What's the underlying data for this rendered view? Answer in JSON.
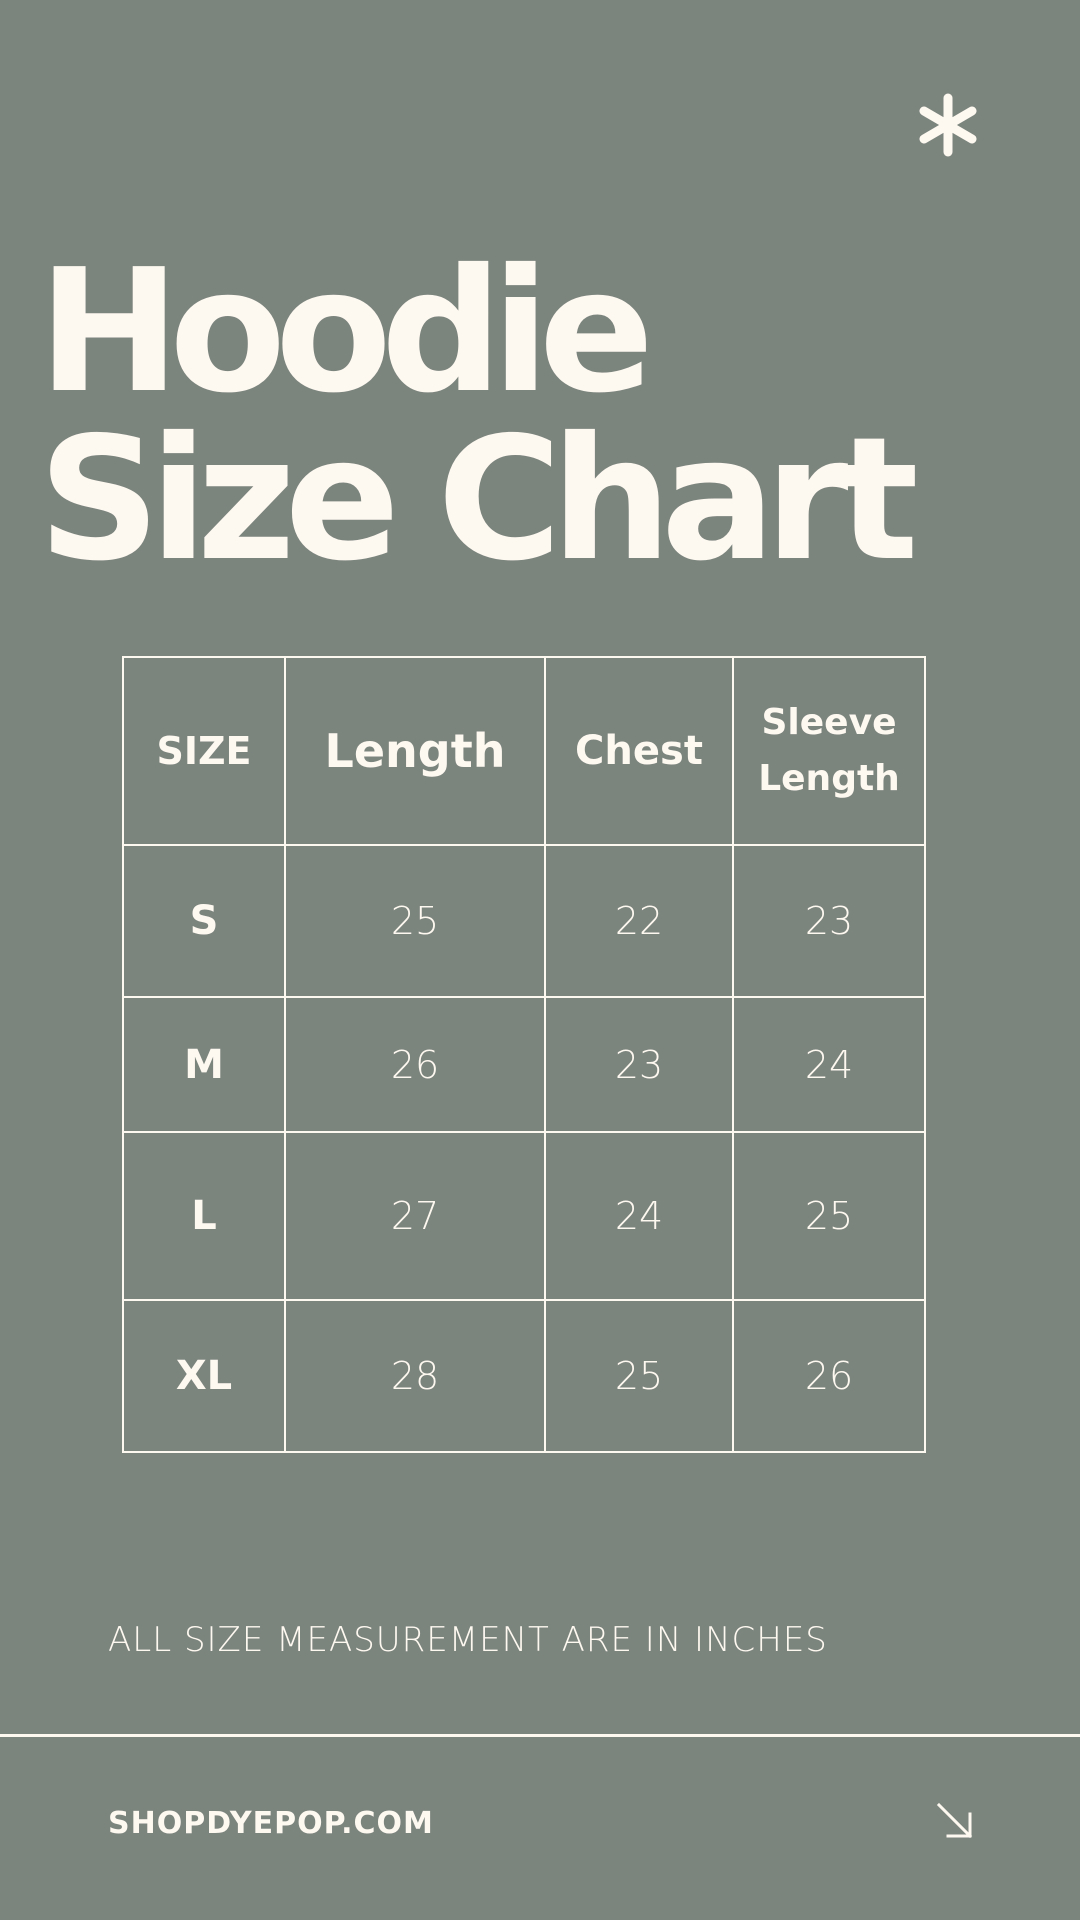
{
  "title": {
    "line1": "Hoodie",
    "line2": "Size Chart"
  },
  "decor": {
    "top_icon": "asterisk-icon",
    "footer_icon": "arrow-down-right-icon"
  },
  "table": {
    "headers": [
      "SIZE",
      "Length",
      "Chest",
      "Sleeve Length"
    ],
    "rows": [
      [
        "S",
        "25",
        "22",
        "23"
      ],
      [
        "M",
        "26",
        "23",
        "24"
      ],
      [
        "L",
        "27",
        "24",
        "25"
      ],
      [
        "XL",
        "28",
        "25",
        "26"
      ]
    ]
  },
  "note": "ALL SIZE MEASUREMENT ARE IN INCHES",
  "footer": {
    "website": "SHOPDYEPOP.COM"
  },
  "colors": {
    "background": "#7c847e",
    "foreground": "#fdf8f0"
  }
}
